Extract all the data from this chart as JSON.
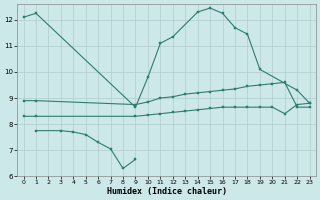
{
  "title": "",
  "xlabel": "Humidex (Indice chaleur)",
  "bg_color": "#cce8e8",
  "grid_color": "#aacccc",
  "line_color": "#2e7d6e",
  "xlim": [
    -0.5,
    23.5
  ],
  "ylim": [
    6,
    12.6
  ],
  "yticks": [
    6,
    7,
    8,
    9,
    10,
    11,
    12
  ],
  "xticks": [
    0,
    1,
    2,
    3,
    4,
    5,
    6,
    7,
    8,
    9,
    10,
    11,
    12,
    13,
    14,
    15,
    16,
    17,
    18,
    19,
    20,
    21,
    22,
    23
  ],
  "line1_x": [
    0,
    1,
    9,
    10,
    11,
    12,
    14,
    15,
    16,
    17,
    18,
    19,
    22,
    23
  ],
  "line1_y": [
    12.1,
    12.25,
    8.65,
    9.8,
    11.1,
    11.35,
    12.3,
    12.45,
    12.25,
    11.7,
    11.45,
    10.1,
    9.3,
    8.8
  ],
  "line2_x": [
    1,
    3,
    4,
    5,
    6,
    7,
    8,
    9
  ],
  "line2_y": [
    7.75,
    7.75,
    7.7,
    7.6,
    7.3,
    7.05,
    6.3,
    6.65
  ],
  "line3_x": [
    0,
    1,
    9,
    10,
    11,
    12,
    13,
    14,
    15,
    16,
    17,
    18,
    19,
    20,
    21,
    22,
    23
  ],
  "line3_y": [
    8.9,
    8.9,
    8.75,
    8.85,
    9.0,
    9.05,
    9.15,
    9.2,
    9.25,
    9.3,
    9.35,
    9.45,
    9.5,
    9.55,
    9.6,
    8.65,
    8.65
  ],
  "line4_x": [
    0,
    1,
    9,
    10,
    11,
    12,
    13,
    14,
    15,
    16,
    17,
    18,
    19,
    20,
    21,
    22,
    23
  ],
  "line4_y": [
    8.3,
    8.3,
    8.3,
    8.35,
    8.4,
    8.45,
    8.5,
    8.55,
    8.6,
    8.65,
    8.65,
    8.65,
    8.65,
    8.65,
    8.4,
    8.75,
    8.8
  ]
}
